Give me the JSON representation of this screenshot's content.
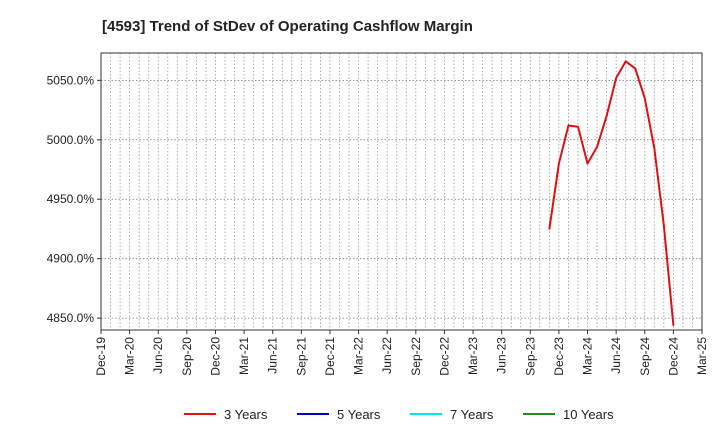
{
  "chart_data": {
    "type": "line",
    "title": "[4593]  Trend of StDev of Operating Cashflow Margin",
    "xlabel": "",
    "ylabel": "",
    "x_ticks": [
      "Dec-19",
      "Mar-20",
      "Jun-20",
      "Sep-20",
      "Dec-20",
      "Mar-21",
      "Jun-21",
      "Sep-21",
      "Dec-21",
      "Mar-22",
      "Jun-22",
      "Sep-22",
      "Dec-22",
      "Mar-23",
      "Jun-23",
      "Sep-23",
      "Dec-23",
      "Mar-24",
      "Jun-24",
      "Sep-24",
      "Dec-24",
      "Mar-25"
    ],
    "y_ticks": [
      "4850.0%",
      "4900.0%",
      "4950.0%",
      "5000.0%",
      "5050.0%"
    ],
    "y_tick_values": [
      4850,
      4900,
      4950,
      5000,
      5050
    ],
    "ylim": [
      4840,
      5073
    ],
    "x_range": [
      "2019-12",
      "2025-03"
    ],
    "grid": "dotted",
    "legend_position": "bottom",
    "series": [
      {
        "name": "3 Years",
        "color": "#dd1111",
        "points": [
          {
            "x": "2023-11",
            "y": 4925
          },
          {
            "x": "2023-12",
            "y": 4980
          },
          {
            "x": "2024-01",
            "y": 5012
          },
          {
            "x": "2024-02",
            "y": 5011
          },
          {
            "x": "2024-03",
            "y": 4980
          },
          {
            "x": "2024-04",
            "y": 4994
          },
          {
            "x": "2024-05",
            "y": 5020
          },
          {
            "x": "2024-06",
            "y": 5052
          },
          {
            "x": "2024-07",
            "y": 5066
          },
          {
            "x": "2024-08",
            "y": 5060
          },
          {
            "x": "2024-09",
            "y": 5035
          },
          {
            "x": "2024-10",
            "y": 4993
          },
          {
            "x": "2024-11",
            "y": 4928
          },
          {
            "x": "2024-12",
            "y": 4844
          }
        ]
      },
      {
        "name": "5 Years",
        "color": "#0000cc",
        "points": []
      },
      {
        "name": "7 Years",
        "color": "#00e5ee",
        "points": []
      },
      {
        "name": "10 Years",
        "color": "#228b22",
        "points": []
      }
    ]
  }
}
